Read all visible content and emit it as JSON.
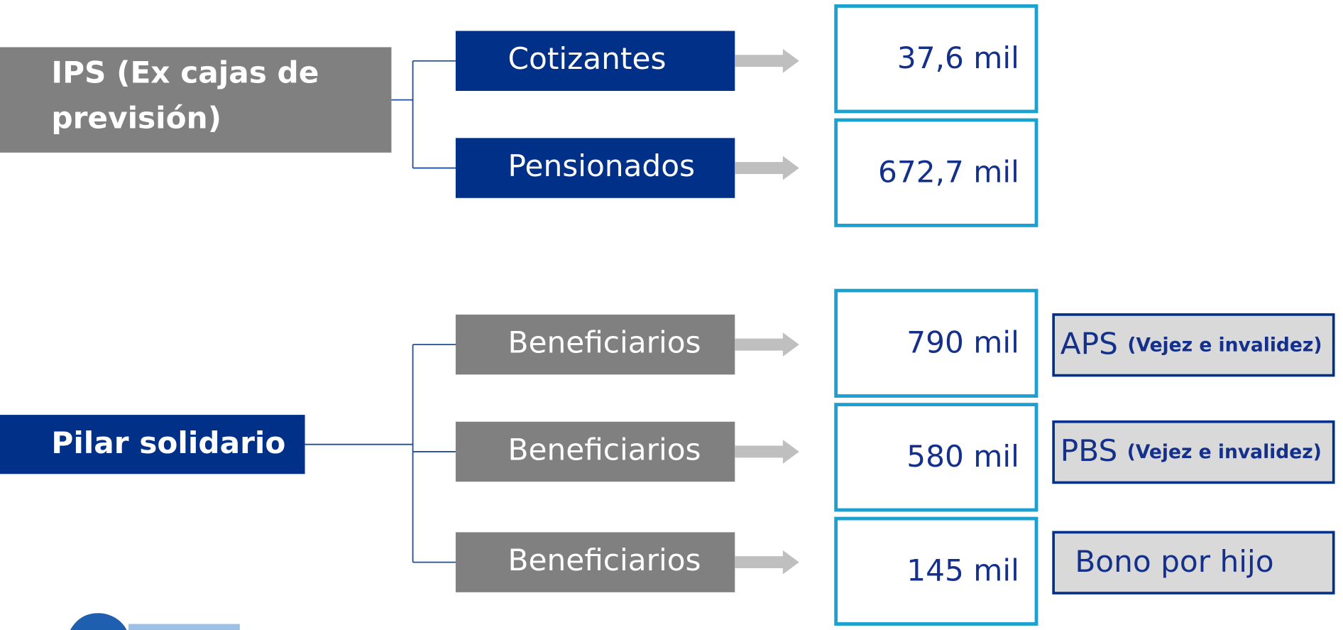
{
  "groups": [
    {
      "label": [
        "IPS (Ex cajas de",
        "previsión)"
      ],
      "branches": [
        {
          "label": "Cotizantes",
          "value": "37,6 mil"
        },
        {
          "label": "Pensionados",
          "value": "672,7 mil"
        }
      ]
    },
    {
      "label": [
        "Pilar solidario"
      ],
      "branches": [
        {
          "label": "Beneficiarios",
          "value": "790 mil",
          "tag": {
            "name": "APS",
            "detail": "(Vejez e invalidez)"
          }
        },
        {
          "label": "Beneficiarios",
          "value": "580 mil",
          "tag": {
            "name": "PBS",
            "detail": "(Vejez e invalidez)"
          }
        },
        {
          "label": "Beneficiarios",
          "value": "145 mil",
          "tag": {
            "name": "Bono por hijo"
          }
        }
      ]
    }
  ]
}
